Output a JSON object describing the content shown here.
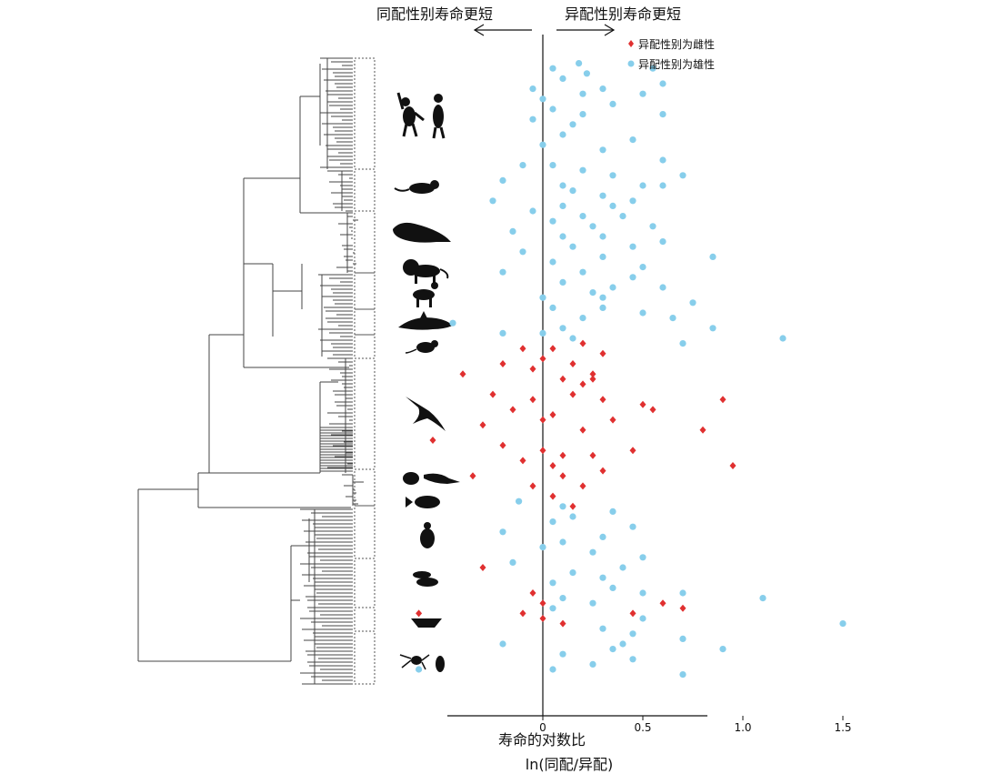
{
  "header": {
    "left_label": "同配性别寿命更短",
    "right_label": "异配性别寿命更短"
  },
  "legend": {
    "female": "异配性别为雌性",
    "male": "异配性别为雄性",
    "female_color": "#e03030",
    "male_color": "#87ceeb",
    "placement": "top-right"
  },
  "axis": {
    "xlabel_line1": "寿命的对数比",
    "xlabel_line2": "ln(同配/异配)"
  },
  "silhouettes": [
    "primates-icon",
    "rodent-icon",
    "seal-icon",
    "lion-icon",
    "deer-icon",
    "dolphin-icon",
    "mouse-icon",
    "bird-icon",
    "reptiles-icon",
    "fish-icon",
    "beetle-icon",
    "fly-icon",
    "moth-icon",
    "spider-cricket-icon"
  ],
  "chart_data": {
    "type": "scatter",
    "xlim": [
      -0.95,
      1.6
    ],
    "xticks": [
      "0",
      "0.5",
      "1.0",
      "1.5"
    ],
    "xtick_values": [
      0,
      0.5,
      1.0,
      1.5
    ],
    "grid": false,
    "note_y": "y is species rank (1 = top of phylogeny)",
    "series": [
      {
        "name": "异配性别为雌性",
        "color": "#e03030",
        "marker": "diamond",
        "points": [
          [
            -0.1,
            58
          ],
          [
            0.05,
            58
          ],
          [
            0.2,
            57
          ],
          [
            0.3,
            59
          ],
          [
            -0.2,
            61
          ],
          [
            -0.05,
            62
          ],
          [
            0.15,
            61
          ],
          [
            0.25,
            63
          ],
          [
            0.0,
            60
          ],
          [
            -0.4,
            63
          ],
          [
            0.1,
            64
          ],
          [
            0.2,
            65
          ],
          [
            0.25,
            64
          ],
          [
            -0.25,
            67
          ],
          [
            -0.05,
            68
          ],
          [
            0.15,
            67
          ],
          [
            0.3,
            68
          ],
          [
            0.5,
            69
          ],
          [
            0.9,
            68
          ],
          [
            0.55,
            70
          ],
          [
            -0.15,
            70
          ],
          [
            0.05,
            71
          ],
          [
            0.35,
            72
          ],
          [
            -0.3,
            73
          ],
          [
            0.0,
            72
          ],
          [
            0.2,
            74
          ],
          [
            0.8,
            74
          ],
          [
            -0.55,
            76
          ],
          [
            -0.2,
            77
          ],
          [
            0.0,
            78
          ],
          [
            0.25,
            79
          ],
          [
            0.45,
            78
          ],
          [
            0.1,
            79
          ],
          [
            -0.1,
            80
          ],
          [
            0.05,
            81
          ],
          [
            0.3,
            82
          ],
          [
            0.95,
            81
          ],
          [
            -0.35,
            83
          ],
          [
            0.1,
            83
          ],
          [
            -0.05,
            85
          ],
          [
            0.2,
            85
          ],
          [
            0.05,
            87
          ],
          [
            0.15,
            89
          ],
          [
            -0.3,
            101
          ],
          [
            -0.05,
            106
          ],
          [
            0.0,
            108
          ],
          [
            0.6,
            108
          ],
          [
            0.45,
            110
          ],
          [
            0.7,
            109
          ],
          [
            -0.1,
            110
          ],
          [
            0.0,
            111
          ],
          [
            0.1,
            112
          ],
          [
            -0.62,
            110
          ]
        ]
      },
      {
        "name": "异配性别为雄性",
        "color": "#87ceeb",
        "marker": "circle",
        "points": [
          [
            0.05,
            3
          ],
          [
            0.18,
            2
          ],
          [
            0.55,
            3
          ],
          [
            0.22,
            4
          ],
          [
            0.1,
            5
          ],
          [
            0.6,
            6
          ],
          [
            -0.05,
            7
          ],
          [
            0.3,
            7
          ],
          [
            0.5,
            8
          ],
          [
            0.0,
            9
          ],
          [
            0.2,
            8
          ],
          [
            0.35,
            10
          ],
          [
            0.05,
            11
          ],
          [
            0.2,
            12
          ],
          [
            0.6,
            12
          ],
          [
            -0.05,
            13
          ],
          [
            0.15,
            14
          ],
          [
            0.1,
            16
          ],
          [
            0.45,
            17
          ],
          [
            0.0,
            18
          ],
          [
            0.3,
            19
          ],
          [
            0.6,
            21
          ],
          [
            -0.1,
            22
          ],
          [
            0.05,
            22
          ],
          [
            0.2,
            23
          ],
          [
            0.7,
            24
          ],
          [
            -0.2,
            25
          ],
          [
            0.35,
            24
          ],
          [
            0.1,
            26
          ],
          [
            0.5,
            26
          ],
          [
            0.6,
            26
          ],
          [
            0.15,
            27
          ],
          [
            0.3,
            28
          ],
          [
            -0.25,
            29
          ],
          [
            0.45,
            29
          ],
          [
            0.1,
            30
          ],
          [
            0.35,
            30
          ],
          [
            -0.05,
            31
          ],
          [
            0.2,
            32
          ],
          [
            0.4,
            32
          ],
          [
            0.05,
            33
          ],
          [
            0.25,
            34
          ],
          [
            0.55,
            34
          ],
          [
            -0.15,
            35
          ],
          [
            0.1,
            36
          ],
          [
            0.3,
            36
          ],
          [
            0.6,
            37
          ],
          [
            0.15,
            38
          ],
          [
            0.45,
            38
          ],
          [
            -0.1,
            39
          ],
          [
            0.3,
            40
          ],
          [
            0.85,
            40
          ],
          [
            0.05,
            41
          ],
          [
            0.5,
            42
          ],
          [
            -0.2,
            43
          ],
          [
            0.2,
            43
          ],
          [
            0.45,
            44
          ],
          [
            0.1,
            45
          ],
          [
            0.35,
            46
          ],
          [
            0.6,
            46
          ],
          [
            0.25,
            47
          ],
          [
            0.0,
            48
          ],
          [
            0.3,
            48
          ],
          [
            0.75,
            49
          ],
          [
            0.05,
            50
          ],
          [
            0.3,
            50
          ],
          [
            0.5,
            51
          ],
          [
            0.2,
            52
          ],
          [
            0.65,
            52
          ],
          [
            -0.45,
            53
          ],
          [
            0.1,
            54
          ],
          [
            0.85,
            54
          ],
          [
            -0.2,
            55
          ],
          [
            0.0,
            55
          ],
          [
            1.2,
            56
          ],
          [
            0.15,
            56
          ],
          [
            0.7,
            57
          ],
          [
            -0.12,
            88
          ],
          [
            0.1,
            89
          ],
          [
            0.35,
            90
          ],
          [
            0.15,
            91
          ],
          [
            0.05,
            92
          ],
          [
            0.45,
            93
          ],
          [
            -0.2,
            94
          ],
          [
            0.3,
            95
          ],
          [
            0.1,
            96
          ],
          [
            0.0,
            97
          ],
          [
            0.25,
            98
          ],
          [
            0.5,
            99
          ],
          [
            -0.15,
            100
          ],
          [
            0.4,
            101
          ],
          [
            0.15,
            102
          ],
          [
            0.3,
            103
          ],
          [
            0.05,
            104
          ],
          [
            0.35,
            105
          ],
          [
            0.7,
            106
          ],
          [
            0.1,
            107
          ],
          [
            0.5,
            106
          ],
          [
            1.1,
            107
          ],
          [
            0.25,
            108
          ],
          [
            0.05,
            109
          ],
          [
            0.5,
            111
          ],
          [
            1.5,
            112
          ],
          [
            0.3,
            113
          ],
          [
            0.45,
            114
          ],
          [
            0.7,
            115
          ],
          [
            -0.2,
            116
          ],
          [
            0.4,
            116
          ],
          [
            0.9,
            117
          ],
          [
            0.1,
            118
          ],
          [
            0.35,
            117
          ],
          [
            0.45,
            119
          ],
          [
            -0.62,
            121
          ],
          [
            0.05,
            121
          ],
          [
            0.7,
            122
          ],
          [
            0.25,
            120
          ]
        ]
      }
    ]
  }
}
